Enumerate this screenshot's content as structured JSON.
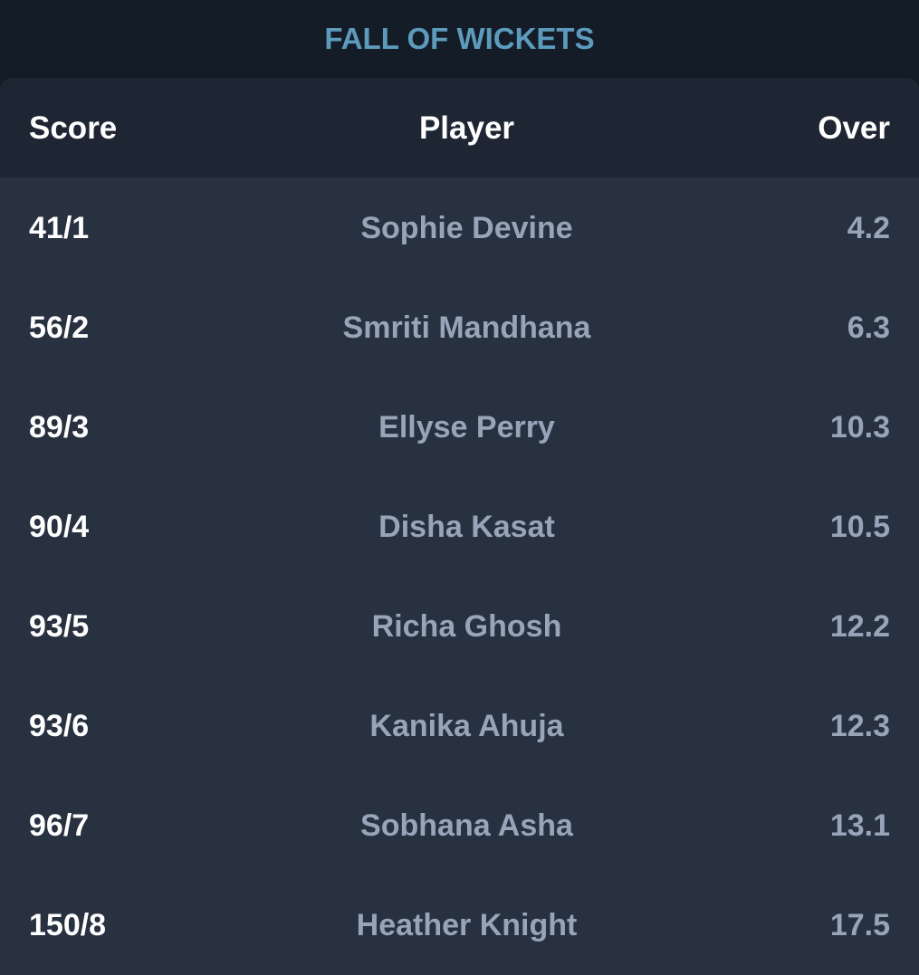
{
  "title": "FALL OF WICKETS",
  "columns": {
    "score": "Score",
    "player": "Player",
    "over": "Over"
  },
  "rows": [
    {
      "score": "41/1",
      "player": "Sophie Devine",
      "over": "4.2"
    },
    {
      "score": "56/2",
      "player": "Smriti Mandhana",
      "over": "6.3"
    },
    {
      "score": "89/3",
      "player": "Ellyse Perry",
      "over": "10.3"
    },
    {
      "score": "90/4",
      "player": "Disha Kasat",
      "over": "10.5"
    },
    {
      "score": "93/5",
      "player": "Richa Ghosh",
      "over": "12.2"
    },
    {
      "score": "93/6",
      "player": "Kanika Ahuja",
      "over": "12.3"
    },
    {
      "score": "96/7",
      "player": "Sobhana Asha",
      "over": "13.1"
    },
    {
      "score": "150/8",
      "player": "Heather Knight",
      "over": "17.5"
    }
  ]
}
